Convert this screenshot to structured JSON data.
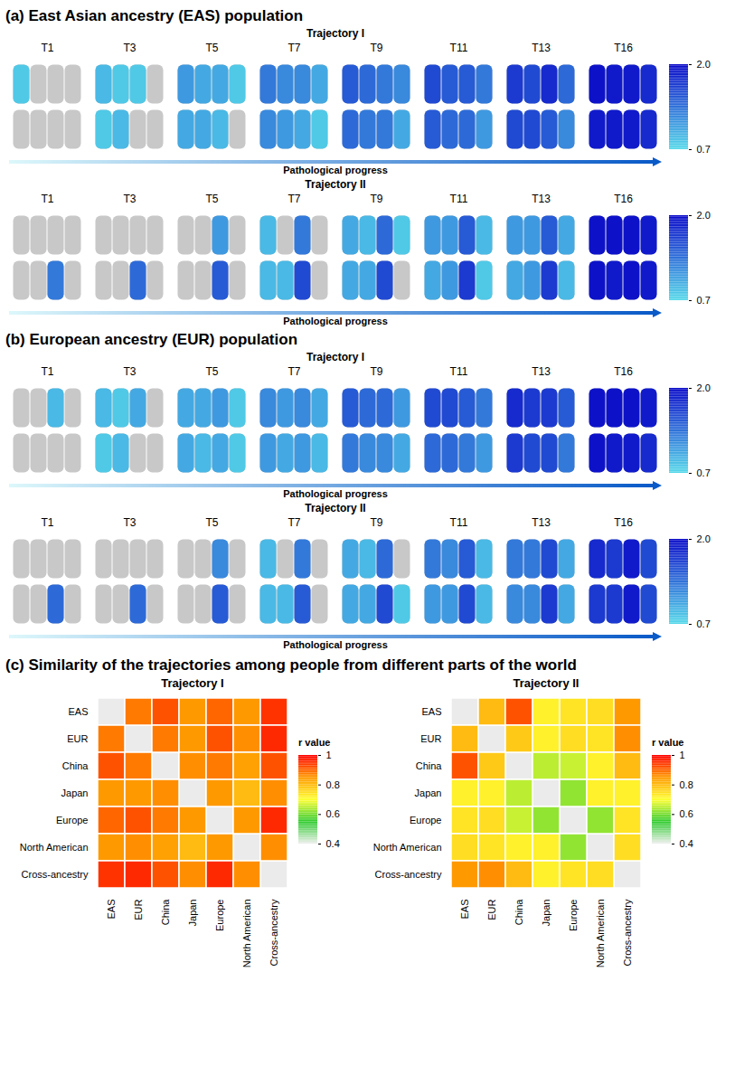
{
  "brain_panels": [
    {
      "title": "(a) East Asian ancestry (EAS) population",
      "trajectories": [
        {
          "title": "Trajectory I",
          "stages": [
            "T1",
            "T3",
            "T5",
            "T7",
            "T9",
            "T11",
            "T13",
            "T16"
          ],
          "lateral": [
            [
              0.8,
              null,
              null,
              null
            ],
            [
              0.9,
              0.8,
              0.8,
              null
            ],
            [
              1.1,
              1.0,
              1.0,
              0.8
            ],
            [
              1.3,
              1.2,
              1.2,
              1.0
            ],
            [
              1.5,
              1.4,
              1.3,
              1.2
            ],
            [
              1.6,
              1.5,
              1.5,
              1.3
            ],
            [
              1.7,
              1.6,
              1.8,
              1.4
            ],
            [
              1.95,
              1.9,
              1.9,
              1.8
            ]
          ],
          "medial": [
            [
              null,
              null,
              null,
              null
            ],
            [
              0.8,
              0.9,
              null,
              null
            ],
            [
              1.0,
              1.0,
              0.9,
              null
            ],
            [
              1.2,
              1.1,
              1.0,
              0.8
            ],
            [
              1.4,
              1.3,
              1.3,
              1.0
            ],
            [
              1.5,
              1.4,
              1.4,
              1.1
            ],
            [
              1.6,
              1.6,
              1.5,
              1.2
            ],
            [
              1.9,
              1.9,
              1.9,
              1.8
            ]
          ],
          "arrow_label": "Pathological progress"
        },
        {
          "title": "Trajectory II",
          "stages": [
            "T1",
            "T3",
            "T5",
            "T7",
            "T9",
            "T11",
            "T13",
            "T16"
          ],
          "lateral": [
            [
              null,
              null,
              null,
              null
            ],
            [
              null,
              null,
              null,
              null
            ],
            [
              null,
              null,
              1.1,
              null
            ],
            [
              0.9,
              null,
              1.3,
              null
            ],
            [
              1.0,
              0.9,
              1.4,
              0.8
            ],
            [
              1.1,
              1.1,
              1.5,
              0.9
            ],
            [
              1.1,
              1.1,
              1.5,
              1.0
            ],
            [
              1.95,
              1.95,
              1.95,
              1.9
            ]
          ],
          "medial": [
            [
              null,
              null,
              1.3,
              null
            ],
            [
              null,
              null,
              1.4,
              null
            ],
            [
              null,
              null,
              1.5,
              null
            ],
            [
              0.9,
              0.9,
              1.6,
              null
            ],
            [
              1.0,
              1.0,
              1.6,
              null
            ],
            [
              1.0,
              1.1,
              1.7,
              0.8
            ],
            [
              1.0,
              1.1,
              1.7,
              0.9
            ],
            [
              1.95,
              1.9,
              1.95,
              1.9
            ]
          ],
          "arrow_label": "Pathological progress"
        }
      ]
    },
    {
      "title": "(b) European ancestry (EUR) population",
      "trajectories": [
        {
          "title": "Trajectory I",
          "stages": [
            "T1",
            "T3",
            "T5",
            "T7",
            "T9",
            "T11",
            "T13",
            "T16"
          ],
          "lateral": [
            [
              null,
              null,
              0.9,
              null
            ],
            [
              0.9,
              0.8,
              1.0,
              null
            ],
            [
              1.0,
              1.0,
              1.1,
              0.8
            ],
            [
              1.2,
              1.1,
              1.2,
              1.0
            ],
            [
              1.5,
              1.4,
              1.4,
              1.1
            ],
            [
              1.6,
              1.6,
              1.5,
              1.3
            ],
            [
              1.8,
              1.7,
              1.7,
              1.5
            ],
            [
              1.95,
              1.95,
              1.95,
              1.9
            ]
          ],
          "medial": [
            [
              null,
              null,
              null,
              null
            ],
            [
              0.8,
              0.9,
              null,
              null
            ],
            [
              1.0,
              0.9,
              1.0,
              0.8
            ],
            [
              1.1,
              1.0,
              1.1,
              0.9
            ],
            [
              1.3,
              1.2,
              1.2,
              1.0
            ],
            [
              1.4,
              1.4,
              1.3,
              1.1
            ],
            [
              1.7,
              1.6,
              1.6,
              1.3
            ],
            [
              1.95,
              1.9,
              1.9,
              1.8
            ]
          ],
          "arrow_label": "Pathological progress"
        },
        {
          "title": "Trajectory II",
          "stages": [
            "T1",
            "T3",
            "T5",
            "T7",
            "T9",
            "T11",
            "T13",
            "T16"
          ],
          "lateral": [
            [
              null,
              null,
              null,
              null
            ],
            [
              null,
              null,
              null,
              null
            ],
            [
              null,
              null,
              1.2,
              null
            ],
            [
              0.9,
              null,
              1.3,
              null
            ],
            [
              1.0,
              0.9,
              1.4,
              null
            ],
            [
              1.3,
              1.2,
              1.5,
              0.9
            ],
            [
              1.3,
              1.3,
              1.6,
              1.0
            ],
            [
              1.8,
              1.7,
              1.9,
              1.6
            ]
          ],
          "medial": [
            [
              null,
              null,
              1.4,
              null
            ],
            [
              null,
              null,
              1.4,
              null
            ],
            [
              null,
              null,
              1.5,
              null
            ],
            [
              0.9,
              0.9,
              1.5,
              null
            ],
            [
              1.0,
              1.0,
              1.6,
              0.8
            ],
            [
              1.1,
              1.1,
              1.6,
              0.9
            ],
            [
              1.2,
              1.2,
              1.7,
              1.0
            ],
            [
              1.7,
              1.7,
              1.9,
              1.6
            ]
          ],
          "arrow_label": "Pathological progress"
        }
      ]
    }
  ],
  "brain_colorbar": {
    "range": [
      0.7,
      2
    ],
    "ticks": [
      0.7,
      {
        "value": 2,
        "label": "2.0"
      }
    ],
    "colors": [
      "#56d9ea",
      "#0a0ac8"
    ],
    "missing_color": "#c8c8c8"
  },
  "section_c_title": "(c) Similarity of the trajectories among people from different parts of the world",
  "chart_data": [
    {
      "type": "heatmap",
      "title": "Trajectory I",
      "rows": [
        "EAS",
        "EUR",
        "China",
        "Japan",
        "Europe",
        "North American",
        "Cross-ancestry"
      ],
      "columns": [
        "EAS",
        "EUR",
        "China",
        "Japan",
        "Europe",
        "North American",
        "Cross-ancestry"
      ],
      "cells": [
        [
          null,
          0.88,
          0.92,
          0.85,
          0.9,
          0.85,
          0.95
        ],
        [
          0.88,
          null,
          0.88,
          0.85,
          0.92,
          0.86,
          0.96
        ],
        [
          0.92,
          0.88,
          null,
          0.86,
          0.88,
          0.84,
          0.92
        ],
        [
          0.85,
          0.85,
          0.86,
          null,
          0.85,
          0.8,
          0.86
        ],
        [
          0.9,
          0.92,
          0.88,
          0.85,
          null,
          0.85,
          0.96
        ],
        [
          0.85,
          0.86,
          0.84,
          0.8,
          0.85,
          null,
          0.86
        ],
        [
          0.95,
          0.96,
          0.92,
          0.86,
          0.96,
          0.86,
          null
        ]
      ],
      "colorbar": {
        "title": "r value",
        "range": [
          0.4,
          1
        ],
        "ticks": [
          0.4,
          0.6,
          0.8,
          1
        ],
        "colors": [
          "#eeeeee",
          "#33cc33",
          "#ffff33",
          "#ff9900",
          "#ff0000"
        ],
        "missing_color": "#ebebeb"
      }
    },
    {
      "type": "heatmap",
      "title": "Trajectory II",
      "rows": [
        "EAS",
        "EUR",
        "China",
        "Japan",
        "Europe",
        "North American",
        "Cross-ancestry"
      ],
      "columns": [
        "EAS",
        "EUR",
        "China",
        "Japan",
        "Europe",
        "North American",
        "Cross-ancestry"
      ],
      "cells": [
        [
          null,
          0.8,
          0.92,
          0.72,
          0.74,
          0.75,
          0.85
        ],
        [
          0.8,
          null,
          0.78,
          0.72,
          0.75,
          0.74,
          0.86
        ],
        [
          0.92,
          0.78,
          null,
          0.65,
          0.66,
          0.72,
          0.8
        ],
        [
          0.72,
          0.72,
          0.65,
          null,
          0.62,
          0.72,
          0.72
        ],
        [
          0.74,
          0.75,
          0.66,
          0.62,
          null,
          0.62,
          0.74
        ],
        [
          0.75,
          0.74,
          0.72,
          0.72,
          0.62,
          null,
          0.75
        ],
        [
          0.85,
          0.86,
          0.8,
          0.72,
          0.74,
          0.75,
          null
        ]
      ],
      "colorbar": {
        "title": "r value",
        "range": [
          0.4,
          1
        ],
        "ticks": [
          0.4,
          0.6,
          0.8,
          1
        ],
        "colors": [
          "#eeeeee",
          "#33cc33",
          "#ffff33",
          "#ff9900",
          "#ff0000"
        ],
        "missing_color": "#ebebeb"
      }
    }
  ]
}
